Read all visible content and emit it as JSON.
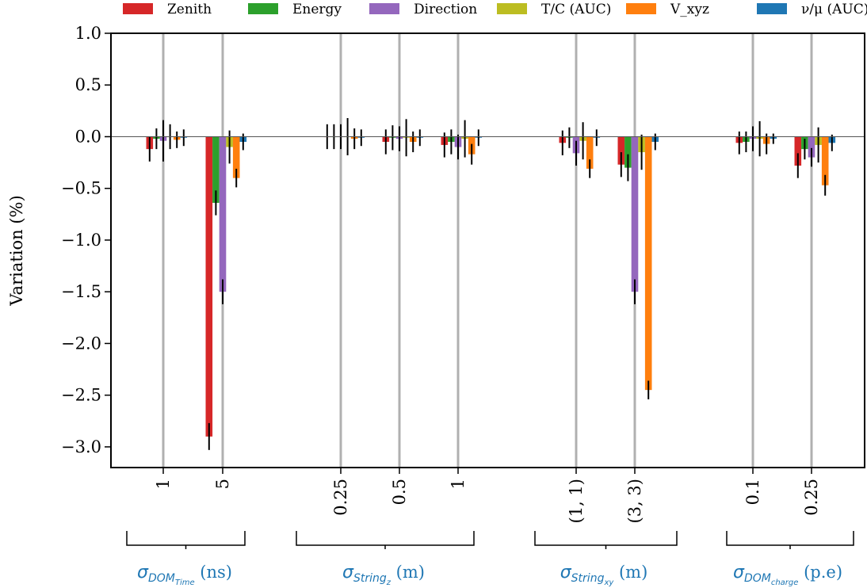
{
  "chart_data": {
    "type": "bar",
    "ylabel": "Variation (%)",
    "ylim": [
      -3.2,
      1.0
    ],
    "yticks": [
      1.0,
      0.5,
      0.0,
      -0.5,
      -1.0,
      -1.5,
      -2.0,
      -2.5,
      -3.0
    ],
    "ytick_labels": [
      "1.0",
      "0.5",
      "0.0",
      "−0.5",
      "−1.0",
      "−1.5",
      "−2.0",
      "−2.5",
      "−3.0"
    ],
    "grid": "vertical lines at category positions",
    "legend_placement": "top",
    "series": [
      {
        "name": "Zenith",
        "color": "#d62728"
      },
      {
        "name": "Energy",
        "color": "#2ca02c"
      },
      {
        "name": "Direction",
        "color": "#9467bd"
      },
      {
        "name": "T/C (AUC)",
        "color": "#bcbd22"
      },
      {
        "name": "V_xyz",
        "color": "#ff7f0e"
      },
      {
        "name": "ν/μ (AUC)",
        "color": "#1f77b4"
      }
    ],
    "groups": [
      {
        "label": "σ_DOM_Time (ns)",
        "categories": [
          {
            "label": "1",
            "values": [
              -0.12,
              -0.02,
              -0.04,
              0.0,
              -0.03,
              -0.01
            ],
            "errors": [
              0.12,
              0.1,
              0.2,
              0.12,
              0.08,
              0.08
            ]
          },
          {
            "label": "5",
            "values": [
              -2.9,
              -0.64,
              -1.5,
              -0.1,
              -0.4,
              -0.05
            ],
            "errors": [
              0.13,
              0.12,
              0.12,
              0.16,
              0.09,
              0.08
            ]
          }
        ]
      },
      {
        "label": "σ_String_z (m)",
        "categories": [
          {
            "label": "0.25",
            "values": [
              0.0,
              0.0,
              0.0,
              0.0,
              -0.02,
              -0.01
            ],
            "errors": [
              0.12,
              0.12,
              0.12,
              0.18,
              0.1,
              0.08
            ]
          },
          {
            "label": "0.5",
            "values": [
              -0.05,
              -0.01,
              -0.02,
              -0.01,
              -0.05,
              -0.01
            ],
            "errors": [
              0.12,
              0.12,
              0.12,
              0.18,
              0.1,
              0.08
            ]
          },
          {
            "label": "1",
            "values": [
              -0.08,
              -0.05,
              -0.1,
              -0.02,
              -0.17,
              -0.01
            ],
            "errors": [
              0.12,
              0.12,
              0.12,
              0.18,
              0.1,
              0.08
            ]
          }
        ]
      },
      {
        "label": "σ_String_xy (m)",
        "categories": [
          {
            "label": "(1, 1)",
            "values": [
              -0.06,
              -0.01,
              -0.16,
              -0.04,
              -0.31,
              -0.01
            ],
            "errors": [
              0.12,
              0.1,
              0.12,
              0.18,
              0.09,
              0.08
            ]
          },
          {
            "label": "(3, 3)",
            "values": [
              -0.27,
              -0.3,
              -1.5,
              -0.15,
              -2.45,
              -0.05
            ],
            "errors": [
              0.12,
              0.13,
              0.12,
              0.17,
              0.09,
              0.08
            ]
          }
        ]
      },
      {
        "label": "σ_DOM_charge (p.e)",
        "categories": [
          {
            "label": "0.1",
            "values": [
              -0.06,
              -0.05,
              -0.02,
              -0.02,
              -0.07,
              -0.02
            ],
            "errors": [
              0.11,
              0.1,
              0.12,
              0.17,
              0.1,
              0.05
            ]
          },
          {
            "label": "0.25",
            "values": [
              -0.28,
              -0.12,
              -0.2,
              -0.08,
              -0.47,
              -0.06
            ],
            "errors": [
              0.12,
              0.1,
              0.09,
              0.17,
              0.1,
              0.08
            ]
          }
        ]
      }
    ]
  }
}
